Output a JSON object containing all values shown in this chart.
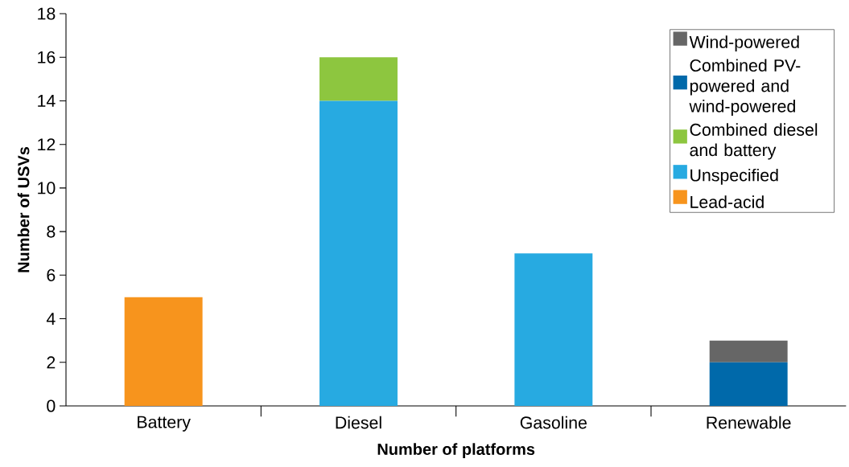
{
  "chart_data": {
    "type": "bar",
    "stacked": true,
    "xlabel": "Number of platforms",
    "ylabel": "Number of USVs",
    "categories": [
      "Battery",
      "Diesel",
      "Gasoline",
      "Renewable"
    ],
    "series": [
      {
        "name": "Lead-acid",
        "color": "#f7941d",
        "values": [
          5,
          null,
          null,
          null
        ]
      },
      {
        "name": "Unspecified",
        "color": "#27aae1",
        "values": [
          null,
          14,
          7,
          null
        ]
      },
      {
        "name": "Combined diesel and battery",
        "color": "#8dc63f",
        "values": [
          null,
          2,
          null,
          null
        ]
      },
      {
        "name": "Combined PV-powered and wind-powered",
        "color": "#0069aa",
        "values": [
          null,
          null,
          null,
          2
        ]
      },
      {
        "name": "Wind-powered",
        "color": "#666666",
        "values": [
          null,
          null,
          null,
          1
        ]
      }
    ],
    "ylim": [
      0,
      18
    ],
    "yticks": [
      0,
      2,
      4,
      6,
      8,
      10,
      12,
      14,
      16,
      18
    ],
    "legend": "top right",
    "grid": false
  }
}
